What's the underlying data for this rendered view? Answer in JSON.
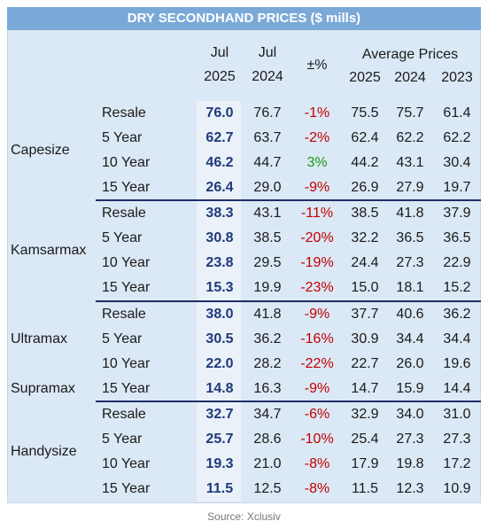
{
  "title": "DRY SECONDHAND PRICES ($ mills)",
  "header": {
    "jul2025": [
      "Jul",
      "2025"
    ],
    "jul2024": [
      "Jul",
      "2024"
    ],
    "change": "±%",
    "average": "Average Prices",
    "years": [
      "2025",
      "2024",
      "2023"
    ]
  },
  "groups": [
    {
      "names": [
        "Capesize"
      ],
      "rows": [
        [
          "Resale",
          "76.0",
          "76.7",
          "-1%",
          "75.5",
          "75.7",
          "61.4"
        ],
        [
          "5 Year",
          "62.7",
          "63.7",
          "-2%",
          "62.4",
          "62.2",
          "62.2"
        ],
        [
          "10 Year",
          "46.2",
          "44.7",
          "3%",
          "44.2",
          "43.1",
          "30.4"
        ],
        [
          "15 Year",
          "26.4",
          "29.0",
          "-9%",
          "26.9",
          "27.9",
          "19.7"
        ]
      ]
    },
    {
      "names": [
        "Kamsarmax"
      ],
      "rows": [
        [
          "Resale",
          "38.3",
          "43.1",
          "-11%",
          "38.5",
          "41.8",
          "37.9"
        ],
        [
          "5 Year",
          "30.8",
          "38.5",
          "-20%",
          "32.2",
          "36.5",
          "36.5"
        ],
        [
          "10 Year",
          "23.8",
          "29.5",
          "-19%",
          "24.4",
          "27.3",
          "22.9"
        ],
        [
          "15 Year",
          "15.3",
          "19.9",
          "-23%",
          "15.0",
          "18.1",
          "15.2"
        ]
      ]
    },
    {
      "names": [
        "Ultramax",
        "Supramax"
      ],
      "rows": [
        [
          "Resale",
          "38.0",
          "41.8",
          "-9%",
          "37.7",
          "40.6",
          "36.2"
        ],
        [
          "5 Year",
          "30.5",
          "36.2",
          "-16%",
          "30.9",
          "34.4",
          "34.4"
        ],
        [
          "10 Year",
          "22.0",
          "28.2",
          "-22%",
          "22.7",
          "26.0",
          "19.6"
        ],
        [
          "15 Year",
          "14.8",
          "16.3",
          "-9%",
          "14.7",
          "15.9",
          "14.4"
        ]
      ]
    },
    {
      "names": [
        "Handysize"
      ],
      "rows": [
        [
          "Resale",
          "32.7",
          "34.7",
          "-6%",
          "32.9",
          "34.0",
          "31.0"
        ],
        [
          "5 Year",
          "25.7",
          "28.6",
          "-10%",
          "25.4",
          "27.3",
          "27.3"
        ],
        [
          "10 Year",
          "19.3",
          "21.0",
          "-8%",
          "17.9",
          "19.8",
          "17.2"
        ],
        [
          "15 Year",
          "11.5",
          "12.5",
          "-8%",
          "11.5",
          "12.3",
          "10.9"
        ]
      ]
    }
  ],
  "source": "Source: Xclusiv"
}
